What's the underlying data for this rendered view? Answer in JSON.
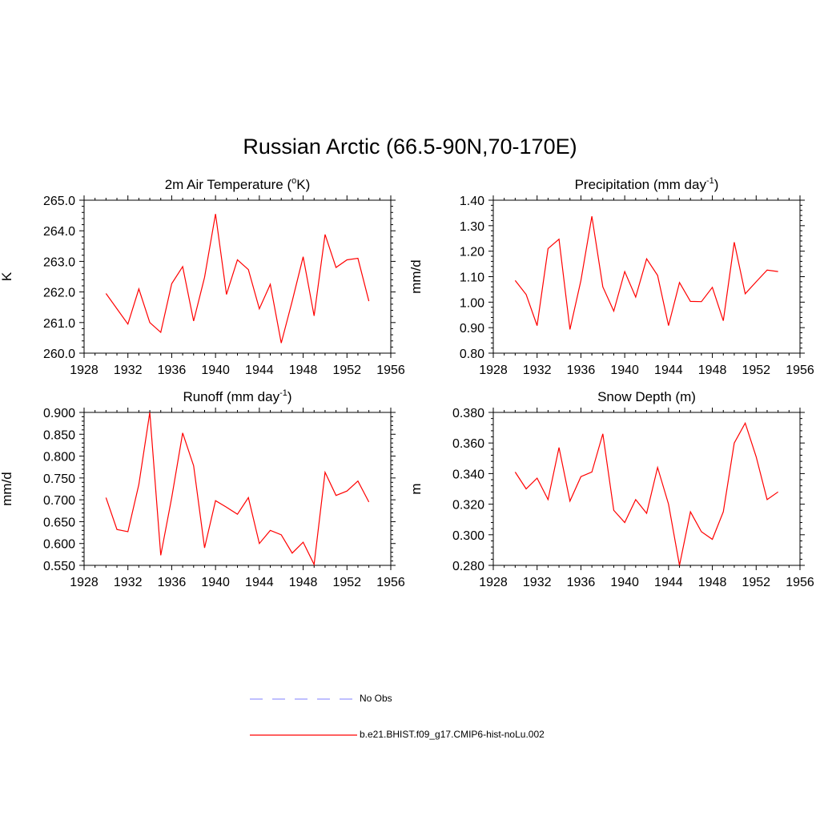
{
  "title": "Russian Arctic (66.5-90N,70-170E)",
  "colors": {
    "model_line": "#ff0000",
    "obs_line": "#9999ff",
    "axis": "#000000"
  },
  "legend": {
    "obs_label": "No Obs",
    "model_label": "b.e21.BHIST.f09_g17.CMIP6-hist-noLu.002"
  },
  "chart_data": [
    {
      "type": "line",
      "title": "2m Air Temperature (",
      "title_sup": "o",
      "title_after": "K)",
      "ylabel": "K",
      "xlim": [
        1928,
        1956
      ],
      "ylim": [
        260.0,
        265.0
      ],
      "xticks": [
        1928,
        1932,
        1936,
        1940,
        1944,
        1948,
        1952,
        1956
      ],
      "xtick_labels": [
        "1928",
        "1932",
        "1936",
        "1940",
        "1944",
        "1948",
        "1952",
        "1956"
      ],
      "yticks": [
        260.0,
        261.0,
        262.0,
        263.0,
        264.0,
        265.0
      ],
      "ytick_labels": [
        "260.0",
        "261.0",
        "262.0",
        "263.0",
        "264.0",
        "265.0"
      ],
      "x": [
        1930,
        1931,
        1932,
        1933,
        1934,
        1935,
        1936,
        1937,
        1938,
        1939,
        1940,
        1941,
        1942,
        1943,
        1944,
        1945,
        1946,
        1947,
        1948,
        1949,
        1950,
        1951,
        1952,
        1953,
        1954
      ],
      "series": [
        {
          "name": "b.e21.BHIST.f09_g17.CMIP6-hist-noLu.002",
          "values": [
            261.95,
            261.45,
            260.95,
            262.1,
            261.0,
            260.68,
            262.27,
            262.83,
            261.05,
            262.48,
            264.55,
            261.92,
            263.05,
            262.73,
            261.45,
            262.25,
            260.33,
            261.7,
            263.15,
            261.22,
            263.88,
            262.8,
            263.05,
            263.1,
            261.7
          ]
        }
      ]
    },
    {
      "type": "line",
      "title": "Precipitation (mm day",
      "title_sup": "-1",
      "title_after": ")",
      "ylabel": "mm/d",
      "xlim": [
        1928,
        1956
      ],
      "ylim": [
        0.8,
        1.4
      ],
      "xticks": [
        1928,
        1932,
        1936,
        1940,
        1944,
        1948,
        1952,
        1956
      ],
      "xtick_labels": [
        "1928",
        "1932",
        "1936",
        "1940",
        "1944",
        "1948",
        "1952",
        "1956"
      ],
      "yticks": [
        0.8,
        0.9,
        1.0,
        1.1,
        1.2,
        1.3,
        1.4
      ],
      "ytick_labels": [
        "0.80",
        "0.90",
        "1.00",
        "1.10",
        "1.20",
        "1.30",
        "1.40"
      ],
      "x": [
        1930,
        1931,
        1932,
        1933,
        1934,
        1935,
        1936,
        1937,
        1938,
        1939,
        1940,
        1941,
        1942,
        1943,
        1944,
        1945,
        1946,
        1947,
        1948,
        1949,
        1950,
        1951,
        1952,
        1953,
        1954
      ],
      "series": [
        {
          "name": "b.e21.BHIST.f09_g17.CMIP6-hist-noLu.002",
          "values": [
            1.085,
            1.03,
            0.908,
            1.21,
            1.247,
            0.893,
            1.085,
            1.337,
            1.06,
            0.965,
            1.12,
            1.02,
            1.17,
            1.105,
            0.908,
            1.077,
            1.003,
            1.002,
            1.058,
            0.927,
            1.235,
            1.033,
            1.08,
            1.126,
            1.12
          ]
        }
      ]
    },
    {
      "type": "line",
      "title": "Runoff (mm day",
      "title_sup": "-1",
      "title_after": ")",
      "ylabel": "mm/d",
      "xlim": [
        1928,
        1956
      ],
      "ylim": [
        0.55,
        0.9
      ],
      "xticks": [
        1928,
        1932,
        1936,
        1940,
        1944,
        1948,
        1952,
        1956
      ],
      "xtick_labels": [
        "1928",
        "1932",
        "1936",
        "1940",
        "1944",
        "1948",
        "1952",
        "1956"
      ],
      "yticks": [
        0.55,
        0.6,
        0.65,
        0.7,
        0.75,
        0.8,
        0.85,
        0.9
      ],
      "ytick_labels": [
        "0.550",
        "0.600",
        "0.650",
        "0.700",
        "0.750",
        "0.800",
        "0.850",
        "0.900"
      ],
      "x": [
        1930,
        1931,
        1932,
        1933,
        1934,
        1935,
        1936,
        1937,
        1938,
        1939,
        1940,
        1941,
        1942,
        1943,
        1944,
        1945,
        1946,
        1947,
        1948,
        1949,
        1950,
        1951,
        1952,
        1953,
        1954
      ],
      "series": [
        {
          "name": "b.e21.BHIST.f09_g17.CMIP6-hist-noLu.002",
          "values": [
            0.705,
            0.632,
            0.627,
            0.735,
            0.9,
            0.573,
            0.705,
            0.853,
            0.778,
            0.59,
            0.698,
            0.683,
            0.667,
            0.705,
            0.6,
            0.63,
            0.62,
            0.578,
            0.603,
            0.552,
            0.763,
            0.71,
            0.72,
            0.743,
            0.695
          ]
        }
      ]
    },
    {
      "type": "line",
      "title": "Snow Depth (m)",
      "title_sup": "",
      "title_after": "",
      "ylabel": "m",
      "xlim": [
        1928,
        1956
      ],
      "ylim": [
        0.28,
        0.38
      ],
      "xticks": [
        1928,
        1932,
        1936,
        1940,
        1944,
        1948,
        1952,
        1956
      ],
      "xtick_labels": [
        "1928",
        "1932",
        "1936",
        "1940",
        "1944",
        "1948",
        "1952",
        "1956"
      ],
      "yticks": [
        0.28,
        0.3,
        0.32,
        0.34,
        0.36,
        0.38
      ],
      "ytick_labels": [
        "0.280",
        "0.300",
        "0.320",
        "0.340",
        "0.360",
        "0.380"
      ],
      "x": [
        1930,
        1931,
        1932,
        1933,
        1934,
        1935,
        1936,
        1937,
        1938,
        1939,
        1940,
        1941,
        1942,
        1943,
        1944,
        1945,
        1946,
        1947,
        1948,
        1949,
        1950,
        1951,
        1952,
        1953,
        1954
      ],
      "series": [
        {
          "name": "b.e21.BHIST.f09_g17.CMIP6-hist-noLu.002",
          "values": [
            0.341,
            0.33,
            0.337,
            0.323,
            0.357,
            0.322,
            0.338,
            0.341,
            0.366,
            0.316,
            0.308,
            0.323,
            0.314,
            0.344,
            0.32,
            0.28,
            0.315,
            0.302,
            0.297,
            0.315,
            0.36,
            0.373,
            0.351,
            0.323,
            0.328
          ]
        }
      ]
    }
  ]
}
